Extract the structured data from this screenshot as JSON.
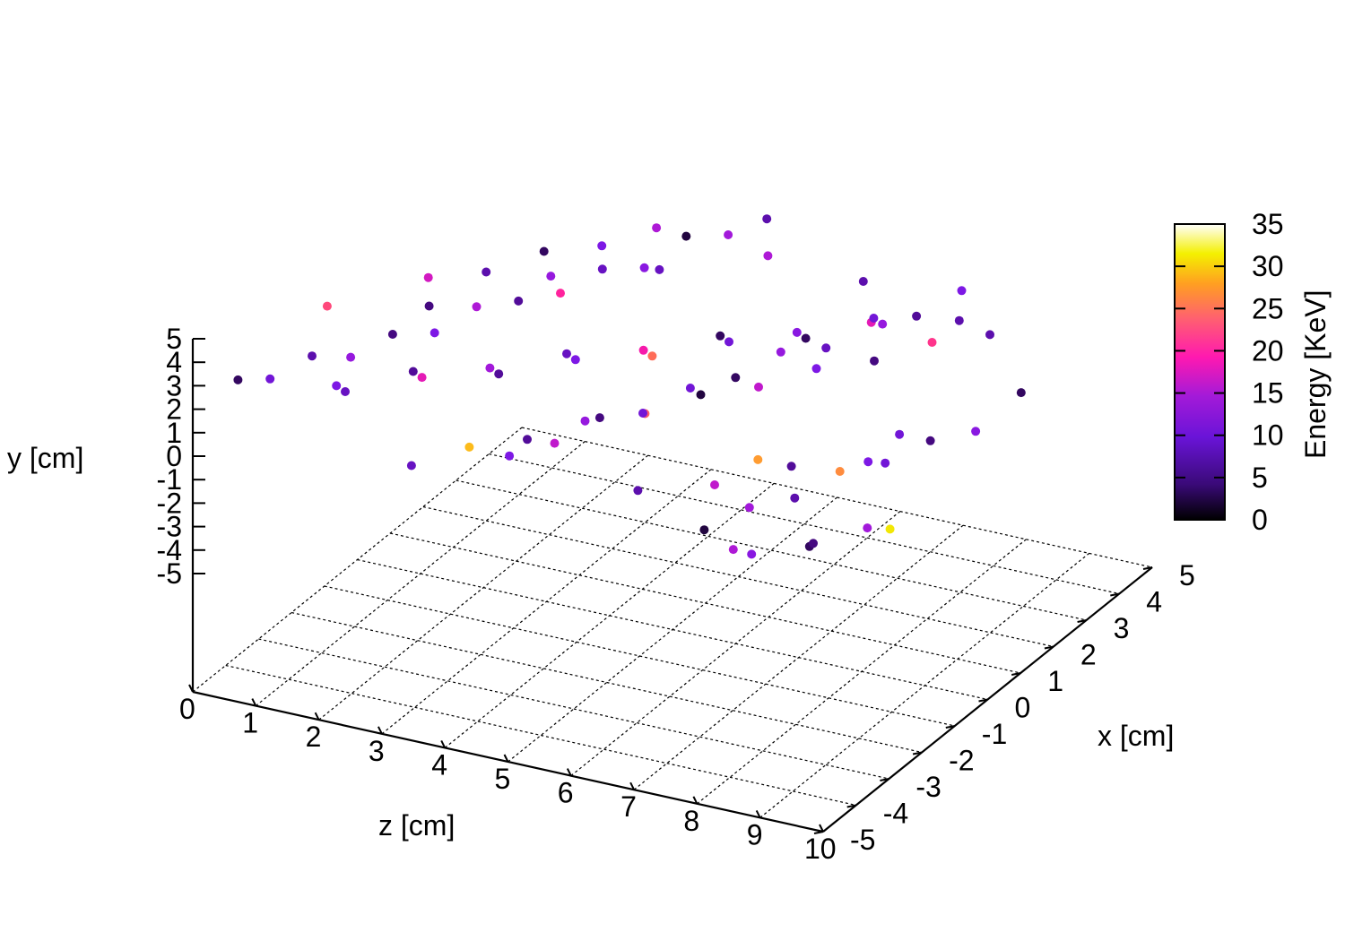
{
  "chart_data": {
    "type": "scatter",
    "projection": "3d",
    "title": "",
    "xlabel": "x [cm]",
    "ylabel": "y [cm]",
    "zlabel": "z [cm]",
    "colorbar_label": "Energy [KeV]",
    "xlim": [
      -5,
      5
    ],
    "ylim": [
      -5,
      5
    ],
    "zlim": [
      0,
      10
    ],
    "color_range": [
      0,
      35
    ],
    "x_ticks": [
      "-5",
      "-4",
      "-3",
      "-2",
      "-1",
      "0",
      "1",
      "2",
      "3",
      "4",
      "5"
    ],
    "y_ticks": [
      "5",
      "4",
      "3",
      "2",
      "1",
      "0",
      "-1",
      "-2",
      "-3",
      "-4",
      "-5"
    ],
    "z_ticks": [
      "0",
      "1",
      "2",
      "3",
      "4",
      "5",
      "6",
      "7",
      "8",
      "9",
      "10"
    ],
    "colorbar_ticks": [
      "35",
      "30",
      "25",
      "20",
      "15",
      "10",
      "5",
      "0"
    ],
    "colormap": [
      "#000000",
      "#4b0a8c",
      "#7a18e6",
      "#b019d6",
      "#ff1aa6",
      "#ff6a5a",
      "#ffb020",
      "#f0f000",
      "#ffffff"
    ],
    "grid": true,
    "legend": "none",
    "series": [
      {
        "points_xyz_energy": [
          [
            -4.2,
            4.1,
            0.3,
            3
          ],
          [
            -3.8,
            3.6,
            0.6,
            8
          ],
          [
            -3.1,
            4.4,
            0.9,
            6
          ],
          [
            -2.5,
            3.2,
            1.2,
            11
          ],
          [
            -1.8,
            4.0,
            1.5,
            4
          ],
          [
            -1.1,
            2.8,
            1.8,
            9
          ],
          [
            -0.4,
            3.9,
            2.1,
            13
          ],
          [
            0.3,
            3.1,
            2.4,
            5
          ],
          [
            1.0,
            2.5,
            2.7,
            18
          ],
          [
            1.7,
            3.4,
            3.0,
            7
          ],
          [
            2.4,
            2.2,
            3.3,
            10
          ],
          [
            3.1,
            3.8,
            3.6,
            2
          ],
          [
            3.8,
            2.6,
            3.9,
            12
          ],
          [
            4.4,
            3.0,
            4.2,
            6
          ],
          [
            -4.0,
            2.0,
            4.5,
            9
          ],
          [
            -3.2,
            1.6,
            4.8,
            14
          ],
          [
            -2.4,
            2.4,
            5.1,
            4
          ],
          [
            -1.6,
            1.2,
            5.4,
            21
          ],
          [
            -0.8,
            2.0,
            5.7,
            8
          ],
          [
            0.0,
            1.4,
            6.0,
            3
          ],
          [
            0.8,
            2.2,
            6.3,
            11
          ],
          [
            1.6,
            1.0,
            6.6,
            7
          ],
          [
            2.4,
            1.8,
            6.9,
            16
          ],
          [
            3.2,
            0.8,
            7.2,
            5
          ],
          [
            4.0,
            1.6,
            7.5,
            9
          ],
          [
            -4.4,
            0.4,
            7.8,
            2
          ],
          [
            -3.6,
            0.9,
            8.1,
            12
          ],
          [
            -2.8,
            0.2,
            8.4,
            6
          ],
          [
            -2.0,
            1.1,
            8.7,
            24
          ],
          [
            -1.2,
            0.3,
            9.0,
            8
          ],
          [
            -0.4,
            0.8,
            9.3,
            4
          ],
          [
            0.4,
            0.1,
            9.6,
            10
          ],
          [
            1.2,
            0.6,
            0.5,
            15
          ],
          [
            2.0,
            -0.2,
            1.0,
            6
          ],
          [
            2.8,
            0.4,
            1.5,
            3
          ],
          [
            3.6,
            -0.4,
            2.0,
            9
          ],
          [
            4.3,
            0.2,
            2.5,
            13
          ],
          [
            -4.1,
            -0.6,
            3.0,
            7
          ],
          [
            -3.3,
            -0.2,
            3.5,
            27
          ],
          [
            -2.5,
            -0.8,
            4.0,
            5
          ],
          [
            -1.7,
            -0.4,
            4.5,
            11
          ],
          [
            -0.9,
            -1.0,
            5.0,
            8
          ],
          [
            -0.1,
            -0.6,
            5.5,
            2
          ],
          [
            0.7,
            -1.2,
            6.0,
            14
          ],
          [
            1.5,
            -0.8,
            6.5,
            9
          ],
          [
            2.3,
            -1.4,
            7.0,
            4
          ],
          [
            3.1,
            -1.0,
            7.5,
            19
          ],
          [
            3.9,
            -1.6,
            8.0,
            6
          ],
          [
            -4.3,
            -1.2,
            8.5,
            10
          ],
          [
            -3.5,
            -1.8,
            9.0,
            3
          ],
          [
            -2.7,
            -1.4,
            9.5,
            12
          ],
          [
            -1.9,
            -2.0,
            0.8,
            7
          ],
          [
            -1.1,
            -1.6,
            1.6,
            16
          ],
          [
            -0.3,
            -2.2,
            2.4,
            5
          ],
          [
            0.5,
            -1.8,
            3.2,
            9
          ],
          [
            1.3,
            -2.4,
            4.0,
            22
          ],
          [
            2.1,
            -2.0,
            4.8,
            8
          ],
          [
            2.9,
            -2.6,
            5.6,
            3
          ],
          [
            3.7,
            -2.2,
            6.4,
            11
          ],
          [
            4.5,
            -2.8,
            7.2,
            6
          ],
          [
            -3.9,
            -2.4,
            8.0,
            13
          ],
          [
            -3.0,
            -3.0,
            8.8,
            4
          ],
          [
            -2.2,
            -2.6,
            9.6,
            30
          ],
          [
            -1.4,
            -3.2,
            0.4,
            9
          ],
          [
            -0.6,
            -2.8,
            1.2,
            5
          ],
          [
            0.2,
            -3.4,
            2.0,
            12
          ],
          [
            1.0,
            -3.0,
            2.8,
            7
          ],
          [
            1.8,
            -3.6,
            3.6,
            17
          ],
          [
            2.6,
            -3.2,
            4.4,
            3
          ],
          [
            3.4,
            -3.8,
            5.2,
            10
          ],
          [
            4.2,
            -3.4,
            6.0,
            8
          ],
          [
            -4.5,
            3.0,
            6.8,
            6
          ],
          [
            -3.7,
            2.6,
            7.6,
            14
          ],
          [
            -2.9,
            3.4,
            8.4,
            5
          ],
          [
            -2.1,
            2.9,
            9.2,
            9
          ],
          [
            -1.3,
            3.7,
            0.2,
            20
          ],
          [
            -0.5,
            3.3,
            1.4,
            4
          ],
          [
            0.9,
            4.2,
            2.6,
            11
          ],
          [
            1.9,
            3.9,
            3.8,
            7
          ],
          [
            2.9,
            4.3,
            5.0,
            13
          ],
          [
            3.5,
            2.0,
            6.2,
            6
          ],
          [
            -2.0,
            0.5,
            7.4,
            25
          ],
          [
            0.0,
            -0.5,
            8.6,
            8
          ],
          [
            1.4,
            1.5,
            9.8,
            3
          ]
        ]
      }
    ]
  }
}
